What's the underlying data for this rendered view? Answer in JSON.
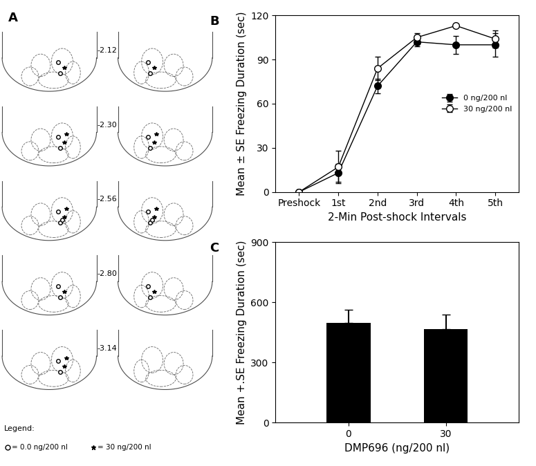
{
  "atlas": {
    "label": "A",
    "sections": [
      "-2.12",
      "-2.30",
      "-2.56",
      "-2.80",
      "-3.14"
    ],
    "legend": {
      "title": "Legend:",
      "entries": [
        {
          "marker": "o",
          "text": "= 0.0 ng/200 nl"
        },
        {
          "marker": "*",
          "text": "= 30 ng/200 nl"
        }
      ]
    }
  },
  "chart_data": [
    {
      "type": "line",
      "title": "B",
      "categories": [
        "Preshock",
        "1st",
        "2nd",
        "3rd",
        "4th",
        "5th"
      ],
      "x_label": "2-Min Post-shock Intervals",
      "y_label": "Mean ± SE Freezing Duration (sec)",
      "ylim": [
        0,
        120
      ],
      "yticks": [
        0,
        30,
        60,
        90,
        120
      ],
      "legend": "center right",
      "series": [
        {
          "name": "0 ng/200 nl",
          "color": "#000000",
          "marker": "o",
          "values": [
            0,
            13,
            72,
            102,
            100,
            100
          ],
          "errors": [
            0,
            6,
            5,
            3,
            6,
            8
          ]
        },
        {
          "name": "30 ng/200 nl",
          "color": "#ffffff",
          "marker": "o",
          "values": [
            0,
            17,
            84,
            105,
            113,
            104
          ],
          "errors": [
            0,
            11,
            8,
            3,
            0,
            6
          ]
        }
      ]
    },
    {
      "type": "bar",
      "title": "C",
      "categories": [
        "0",
        "30"
      ],
      "x_label": "DMP696 (ng/200 nl)",
      "y_label": "Mean +.SE Freezing Duration (sec)",
      "ylim": [
        0,
        900
      ],
      "yticks": [
        0,
        300,
        600,
        900
      ],
      "color": "#000000",
      "values": [
        497,
        468
      ],
      "errors": [
        68,
        73
      ]
    }
  ]
}
